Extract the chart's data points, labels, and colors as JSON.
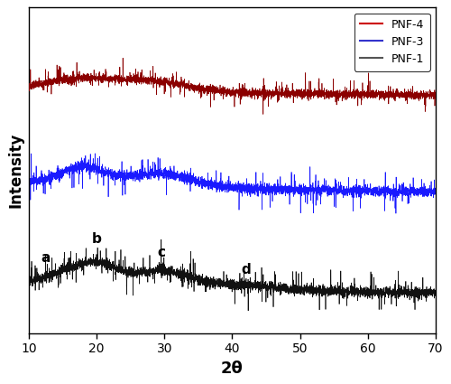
{
  "xlabel": "2θ",
  "ylabel": "Intensity",
  "xlim": [
    10,
    70
  ],
  "xticks": [
    10,
    20,
    30,
    40,
    50,
    60,
    70
  ],
  "line_colors": {
    "PNF-4": "#8B0000",
    "PNF-3": "#1a1aff",
    "PNF-1": "#111111"
  },
  "legend_colors": {
    "PNF-4": "#cc0000",
    "PNF-3": "#3333cc",
    "PNF-1": "#555555"
  },
  "legend_labels": [
    "PNF-4",
    "PNF-3",
    "PNF-1"
  ],
  "seed": 12345,
  "noise_scale": 0.038,
  "n_points": 4000
}
